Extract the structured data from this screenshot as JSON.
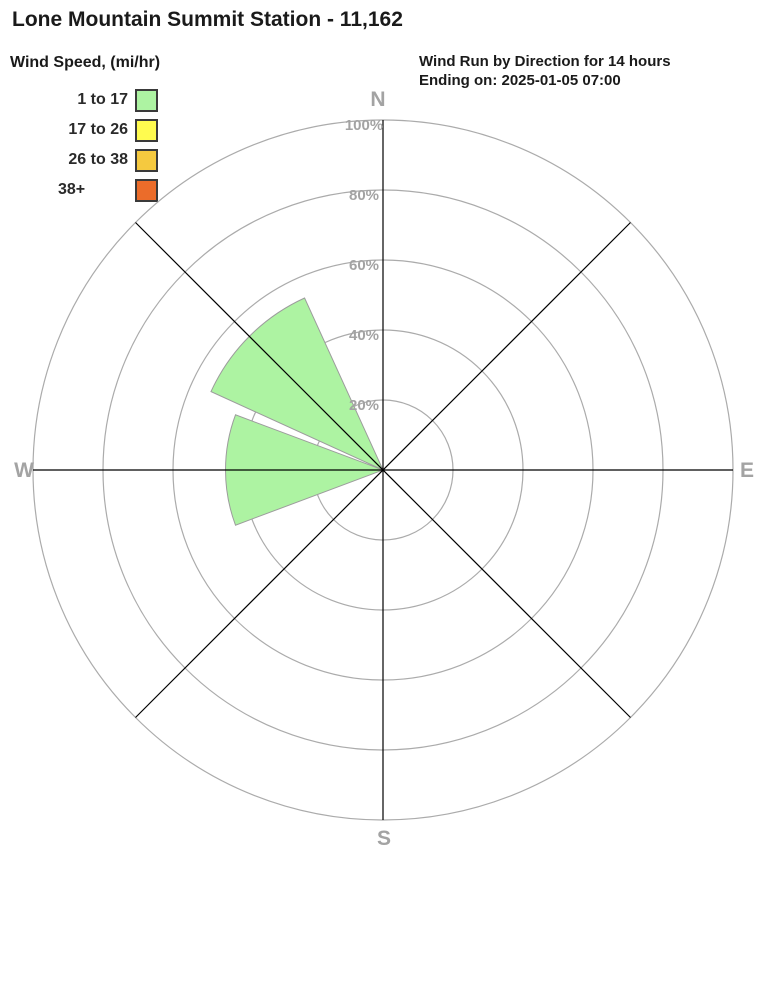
{
  "title": "Lone Mountain Summit Station - 11,162",
  "header": {
    "subtitle_line1": "Wind Run by Direction for 14 hours",
    "subtitle_line2": "Ending on: 2025-01-05 07:00"
  },
  "legend": {
    "title": "Wind Speed, (mi/hr)"
  },
  "chart_data": {
    "type": "wind-rose",
    "title": "Lone Mountain Summit Station - 11,162",
    "subtitle": "Wind Run by Direction for 14 hours",
    "ending_on": "2025-01-05 07:00",
    "units": "mi/hr",
    "legend_title": "Wind Speed, (mi/hr)",
    "speed_bins": [
      {
        "label": "1 to 17",
        "color": "#adf3a2"
      },
      {
        "label": "17 to 26",
        "color": "#fffb4f"
      },
      {
        "label": "26 to 38",
        "color": "#f5c93f"
      },
      {
        "label": "38+",
        "color": "#eb6c2a"
      }
    ],
    "axis_max_pct": 100,
    "rings_pct": [
      20,
      40,
      60,
      80,
      100
    ],
    "ring_labels": [
      "20%",
      "40%",
      "60%",
      "80%",
      "100%"
    ],
    "compass_labels": [
      "N",
      "E",
      "S",
      "W"
    ],
    "sector_width_deg": 45,
    "sectors": [
      {
        "direction": "NW",
        "azimuth_deg": 315,
        "bin": "1 to 17",
        "value_pct": 54
      },
      {
        "direction": "W",
        "azimuth_deg": 270,
        "bin": "1 to 17",
        "value_pct": 45
      }
    ],
    "colors": {
      "grid": "#ababab",
      "axis": "#000000",
      "wedge_outline": "#9c9c9c",
      "label_gray": "#a3a3a3"
    }
  }
}
